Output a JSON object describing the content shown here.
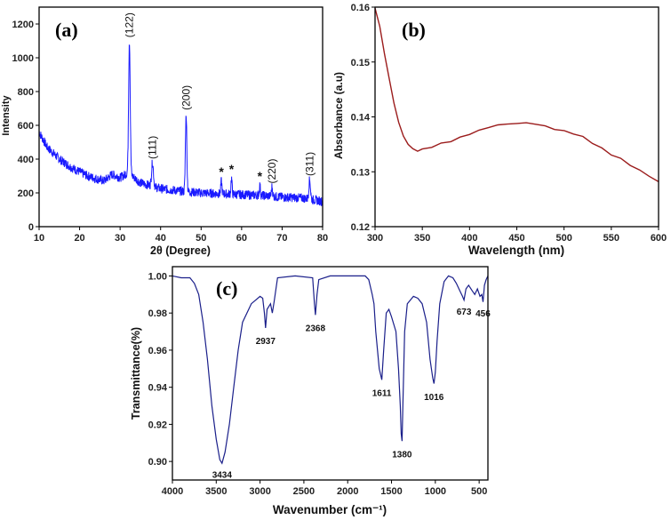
{
  "colors": {
    "xrd_line": "#1a1aff",
    "uv_line": "#9b1c1c",
    "ftir_line": "#1a1f8a",
    "axis": "#000000"
  },
  "chart_data": [
    {
      "id": "a",
      "type": "line",
      "panel_label": "(a)",
      "xlabel": "2θ (Degree)",
      "ylabel": "Intensity",
      "xlim": [
        10,
        80
      ],
      "ylim": [
        0,
        1300
      ],
      "xticks": [
        10,
        20,
        30,
        40,
        50,
        60,
        70,
        80
      ],
      "yticks": [
        0,
        200,
        400,
        600,
        800,
        1000,
        1200
      ],
      "baseline": [
        [
          10,
          560
        ],
        [
          12,
          470
        ],
        [
          15,
          400
        ],
        [
          18,
          350
        ],
        [
          22,
          300
        ],
        [
          26,
          270
        ],
        [
          28,
          310
        ],
        [
          30,
          290
        ],
        [
          32,
          320
        ],
        [
          35,
          260
        ],
        [
          40,
          225
        ],
        [
          45,
          210
        ],
        [
          50,
          200
        ],
        [
          55,
          195
        ],
        [
          60,
          190
        ],
        [
          65,
          185
        ],
        [
          70,
          175
        ],
        [
          75,
          170
        ],
        [
          80,
          150
        ]
      ],
      "peaks": [
        {
          "x": 32.3,
          "y": 1100,
          "w": 0.5
        },
        {
          "x": 38.0,
          "y": 380,
          "w": 0.6
        },
        {
          "x": 46.3,
          "y": 670,
          "w": 0.45
        },
        {
          "x": 55.0,
          "y": 270,
          "w": 0.35
        },
        {
          "x": 57.5,
          "y": 285,
          "w": 0.35
        },
        {
          "x": 64.5,
          "y": 245,
          "w": 0.35
        },
        {
          "x": 67.5,
          "y": 235,
          "w": 0.35
        },
        {
          "x": 76.8,
          "y": 280,
          "w": 0.5
        }
      ],
      "annotations": [
        {
          "text": "(122)",
          "x": 32.3,
          "y": 1120,
          "vertical": true
        },
        {
          "text": "(111)",
          "x": 38.0,
          "y": 400,
          "vertical": true
        },
        {
          "text": "(200)",
          "x": 46.3,
          "y": 690,
          "vertical": true
        },
        {
          "text": "*",
          "x": 55.0,
          "y": 300,
          "vertical": false
        },
        {
          "text": "*",
          "x": 57.5,
          "y": 315,
          "vertical": false
        },
        {
          "text": "*",
          "x": 64.5,
          "y": 275,
          "vertical": false
        },
        {
          "text": "(220)",
          "x": 67.5,
          "y": 255,
          "vertical": true
        },
        {
          "text": "(311)",
          "x": 76.8,
          "y": 300,
          "vertical": true
        }
      ]
    },
    {
      "id": "b",
      "type": "line",
      "panel_label": "(b)",
      "xlabel": "Wavelength (nm)",
      "ylabel": "Absorbance (a.u)",
      "xlim": [
        300,
        600
      ],
      "ylim": [
        0.12,
        0.16
      ],
      "xticks": [
        300,
        350,
        400,
        450,
        500,
        550,
        600
      ],
      "yticks": [
        0.12,
        0.13,
        0.14,
        0.15,
        0.16
      ],
      "points": [
        [
          300,
          0.1598
        ],
        [
          305,
          0.1565
        ],
        [
          310,
          0.1515
        ],
        [
          315,
          0.147
        ],
        [
          320,
          0.1425
        ],
        [
          325,
          0.139
        ],
        [
          330,
          0.1365
        ],
        [
          335,
          0.135
        ],
        [
          340,
          0.1342
        ],
        [
          345,
          0.1339
        ],
        [
          350,
          0.134
        ],
        [
          360,
          0.1346
        ],
        [
          370,
          0.1351
        ],
        [
          380,
          0.1356
        ],
        [
          390,
          0.1362
        ],
        [
          400,
          0.1369
        ],
        [
          410,
          0.1375
        ],
        [
          420,
          0.1381
        ],
        [
          430,
          0.1385
        ],
        [
          440,
          0.1387
        ],
        [
          450,
          0.1388
        ],
        [
          460,
          0.1389
        ],
        [
          470,
          0.1387
        ],
        [
          480,
          0.1383
        ],
        [
          490,
          0.1378
        ],
        [
          500,
          0.1374
        ],
        [
          510,
          0.137
        ],
        [
          520,
          0.1363
        ],
        [
          530,
          0.1353
        ],
        [
          540,
          0.1342
        ],
        [
          550,
          0.1332
        ],
        [
          560,
          0.1323
        ],
        [
          570,
          0.1313
        ],
        [
          580,
          0.1302
        ],
        [
          590,
          0.1293
        ],
        [
          600,
          0.1282
        ]
      ]
    },
    {
      "id": "c",
      "type": "line",
      "panel_label": "(c)",
      "xlabel": "Wavenumber (cm⁻¹)",
      "ylabel": "Transmittance(%)",
      "xlim": [
        4000,
        400
      ],
      "ylim": [
        0.89,
        1.005
      ],
      "xticks": [
        4000,
        3500,
        3000,
        2500,
        2000,
        1500,
        1000,
        500
      ],
      "yticks": [
        0.9,
        0.92,
        0.94,
        0.96,
        0.98,
        1.0
      ],
      "ytick_labels": [
        "0.90",
        "0.92",
        "0.94",
        "0.96",
        "0.98",
        "1.00"
      ],
      "points": [
        [
          4000,
          1.0
        ],
        [
          3900,
          0.999
        ],
        [
          3800,
          0.999
        ],
        [
          3750,
          0.996
        ],
        [
          3700,
          0.99
        ],
        [
          3650,
          0.975
        ],
        [
          3600,
          0.955
        ],
        [
          3550,
          0.93
        ],
        [
          3500,
          0.912
        ],
        [
          3460,
          0.901
        ],
        [
          3434,
          0.899
        ],
        [
          3400,
          0.905
        ],
        [
          3350,
          0.92
        ],
        [
          3300,
          0.94
        ],
        [
          3250,
          0.96
        ],
        [
          3200,
          0.975
        ],
        [
          3100,
          0.985
        ],
        [
          3000,
          0.989
        ],
        [
          2970,
          0.988
        ],
        [
          2950,
          0.98
        ],
        [
          2937,
          0.972
        ],
        [
          2920,
          0.982
        ],
        [
          2880,
          0.985
        ],
        [
          2860,
          0.98
        ],
        [
          2840,
          0.986
        ],
        [
          2800,
          0.999
        ],
        [
          2600,
          1.0
        ],
        [
          2400,
          0.999
        ],
        [
          2380,
          0.985
        ],
        [
          2368,
          0.979
        ],
        [
          2350,
          0.99
        ],
        [
          2330,
          0.998
        ],
        [
          2200,
          1.0
        ],
        [
          2000,
          1.0
        ],
        [
          1800,
          1.0
        ],
        [
          1760,
          0.998
        ],
        [
          1720,
          0.99
        ],
        [
          1700,
          0.985
        ],
        [
          1680,
          0.97
        ],
        [
          1640,
          0.95
        ],
        [
          1611,
          0.944
        ],
        [
          1590,
          0.96
        ],
        [
          1560,
          0.98
        ],
        [
          1530,
          0.982
        ],
        [
          1500,
          0.978
        ],
        [
          1450,
          0.97
        ],
        [
          1420,
          0.95
        ],
        [
          1400,
          0.93
        ],
        [
          1390,
          0.915
        ],
        [
          1380,
          0.911
        ],
        [
          1370,
          0.93
        ],
        [
          1350,
          0.97
        ],
        [
          1320,
          0.985
        ],
        [
          1250,
          0.989
        ],
        [
          1200,
          0.988
        ],
        [
          1150,
          0.985
        ],
        [
          1100,
          0.975
        ],
        [
          1060,
          0.955
        ],
        [
          1030,
          0.945
        ],
        [
          1016,
          0.942
        ],
        [
          1000,
          0.948
        ],
        [
          980,
          0.965
        ],
        [
          950,
          0.985
        ],
        [
          900,
          0.997
        ],
        [
          850,
          1.0
        ],
        [
          800,
          0.999
        ],
        [
          760,
          0.996
        ],
        [
          720,
          0.992
        ],
        [
          690,
          0.989
        ],
        [
          673,
          0.987
        ],
        [
          650,
          0.993
        ],
        [
          620,
          0.995
        ],
        [
          580,
          0.992
        ],
        [
          550,
          0.99
        ],
        [
          520,
          0.993
        ],
        [
          490,
          0.989
        ],
        [
          470,
          0.99
        ],
        [
          456,
          0.986
        ],
        [
          440,
          0.995
        ],
        [
          420,
          0.998
        ],
        [
          400,
          1.0
        ]
      ],
      "annotations": [
        {
          "text": "3434",
          "x": 3434,
          "y": 0.896
        },
        {
          "text": "2937",
          "x": 2937,
          "y": 0.968
        },
        {
          "text": "2368",
          "x": 2368,
          "y": 0.975
        },
        {
          "text": "1611",
          "x": 1611,
          "y": 0.94
        },
        {
          "text": "1380",
          "x": 1380,
          "y": 0.907
        },
        {
          "text": "1016",
          "x": 1016,
          "y": 0.938
        },
        {
          "text": "673",
          "x": 673,
          "y": 0.984
        },
        {
          "text": "456",
          "x": 456,
          "y": 0.983
        }
      ]
    }
  ]
}
